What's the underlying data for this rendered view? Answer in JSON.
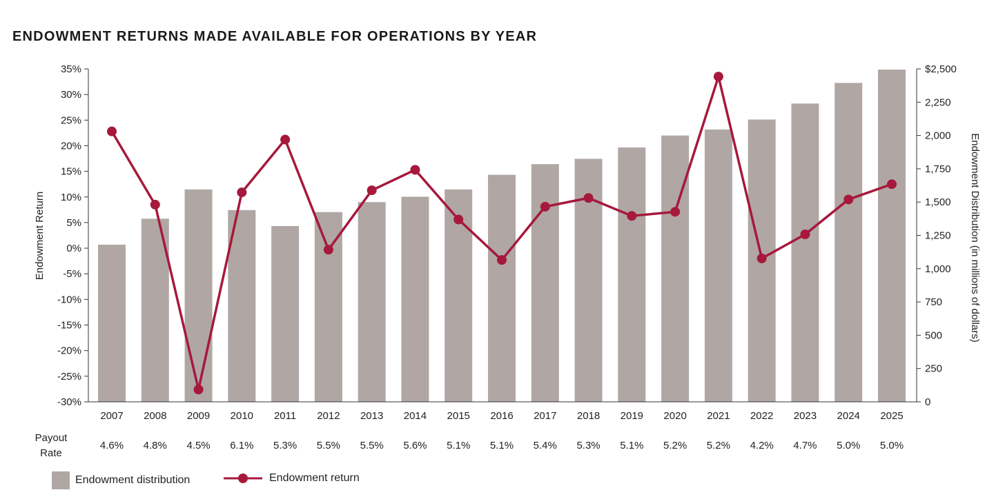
{
  "chart_data": {
    "type": "bar+line",
    "title": "ENDOWMENT RETURNS MADE AVAILABLE FOR OPERATIONS BY YEAR",
    "categories": [
      "2007",
      "2008",
      "2009",
      "2010",
      "2011",
      "2012",
      "2013",
      "2014",
      "2015",
      "2016",
      "2017",
      "2018",
      "2019",
      "2020",
      "2021",
      "2022",
      "2023",
      "2024",
      "2025"
    ],
    "series": [
      {
        "name": "Endowment distribution",
        "type": "bar",
        "axis": "right",
        "color": "#b0a7a4",
        "values": [
          1180,
          1375,
          1595,
          1440,
          1320,
          1425,
          1500,
          1540,
          1595,
          1705,
          1785,
          1825,
          1910,
          2000,
          2045,
          2120,
          2240,
          2395,
          2495
        ]
      },
      {
        "name": "Endowment return",
        "type": "line",
        "axis": "left",
        "color": "#a6193c",
        "values": [
          22.8,
          8.5,
          -27.6,
          10.9,
          21.2,
          -0.3,
          11.3,
          15.3,
          5.6,
          -2.3,
          8.1,
          9.8,
          6.3,
          7.1,
          33.5,
          -2.0,
          2.7,
          9.5,
          12.5
        ]
      }
    ],
    "payout_label": [
      "Payout",
      "Rate"
    ],
    "payout_rates": [
      "4.6%",
      "4.8%",
      "4.5%",
      "6.1%",
      "5.3%",
      "5.5%",
      "5.5%",
      "5.6%",
      "5.1%",
      "5.1%",
      "5.4%",
      "5.3%",
      "5.1%",
      "5.2%",
      "5.2%",
      "4.2%",
      "4.7%",
      "5.0%",
      "5.0%"
    ],
    "ylabel_left": "Endowment Return",
    "ylabel_right": "Endowment Distribution (in millions of dollars)",
    "ylim_left": [
      -30,
      35
    ],
    "ylim_right": [
      0,
      2500
    ],
    "left_ticks": [
      "35%",
      "30%",
      "25%",
      "20%",
      "15%",
      "10%",
      "5%",
      "0%",
      "-5%",
      "-10%",
      "-15%",
      "-20%",
      "-25%",
      "-30%"
    ],
    "right_ticks": [
      "$2,500",
      "2,250",
      "2,000",
      "1,750",
      "1,500",
      "1,250",
      "1,000",
      "750",
      "500",
      "250",
      "0"
    ],
    "grid": false,
    "legend_position": "bottom-left"
  }
}
